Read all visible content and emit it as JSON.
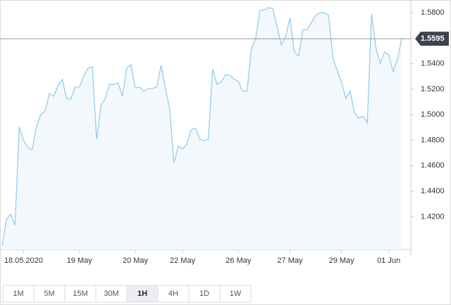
{
  "chart_data": {
    "type": "area",
    "categories": [
      null,
      null,
      null,
      null,
      null,
      "18.05.2020",
      null,
      null,
      null,
      null,
      null,
      null,
      null,
      null,
      null,
      null,
      null,
      null,
      "19 May",
      null,
      null,
      null,
      null,
      null,
      null,
      null,
      null,
      null,
      null,
      null,
      null,
      "20 May",
      null,
      null,
      null,
      null,
      null,
      null,
      null,
      null,
      null,
      null,
      "22 May",
      null,
      null,
      null,
      null,
      null,
      null,
      null,
      null,
      null,
      null,
      null,
      null,
      "26 May",
      null,
      null,
      null,
      null,
      null,
      null,
      null,
      null,
      null,
      null,
      null,
      "27 May",
      null,
      null,
      null,
      null,
      null,
      null,
      null,
      null,
      null,
      null,
      null,
      "29 May",
      null,
      null,
      null,
      null,
      null,
      null,
      null,
      null,
      null,
      null,
      "01 Jun",
      null,
      null,
      null
    ],
    "values": [
      1.3971,
      1.418,
      1.4219,
      1.4136,
      1.4907,
      1.4797,
      1.4742,
      1.4726,
      1.4907,
      1.5001,
      1.5029,
      1.5166,
      1.5144,
      1.5227,
      1.5277,
      1.5128,
      1.5122,
      1.5216,
      1.5216,
      1.5304,
      1.5365,
      1.5376,
      1.4808,
      1.5073,
      1.5128,
      1.5238,
      1.5238,
      1.5249,
      1.5144,
      1.5365,
      1.5392,
      1.521,
      1.5216,
      1.5183,
      1.5205,
      1.5205,
      1.5216,
      1.5387,
      1.521,
      1.5045,
      1.4621,
      1.4753,
      1.4731,
      1.477,
      1.488,
      1.4896,
      1.4808,
      1.4797,
      1.4808,
      1.5359,
      1.5238,
      1.5255,
      1.5315,
      1.531,
      1.5277,
      1.526,
      1.5183,
      1.5183,
      1.5513,
      1.5596,
      1.5817,
      1.5822,
      1.5839,
      1.5833,
      1.569,
      1.5547,
      1.5613,
      1.5761,
      1.5497,
      1.5458,
      1.5668,
      1.5668,
      1.5723,
      1.5778,
      1.58,
      1.58,
      1.5778,
      1.5442,
      1.5348,
      1.5255,
      1.5128,
      1.5183,
      1.5018,
      1.4973,
      1.499,
      1.4935,
      1.5789,
      1.5524,
      1.5403,
      1.5491,
      1.5469,
      1.5337,
      1.5431,
      1.5595
    ],
    "color": "#8ccbea",
    "ylim": [
      1.3943,
      1.5899
    ],
    "yticks": [
      {
        "value": 1.42,
        "label": "1.4200"
      },
      {
        "value": 1.44,
        "label": "1.4400"
      },
      {
        "value": 1.46,
        "label": "1.4600"
      },
      {
        "value": 1.48,
        "label": "1.4800"
      },
      {
        "value": 1.5,
        "label": "1.5000"
      },
      {
        "value": 1.52,
        "label": "1.5200"
      },
      {
        "value": 1.54,
        "label": "1.5400"
      },
      {
        "value": 1.56,
        "label": "1.5600"
      },
      {
        "value": 1.58,
        "label": "1.5800"
      }
    ],
    "current_price": {
      "value": 1.5595,
      "label": "1.5595"
    }
  },
  "toolbar": {
    "buttons": [
      "1M",
      "5M",
      "15M",
      "30M",
      "1H",
      "4H",
      "1D",
      "1W"
    ],
    "selected": 4
  }
}
